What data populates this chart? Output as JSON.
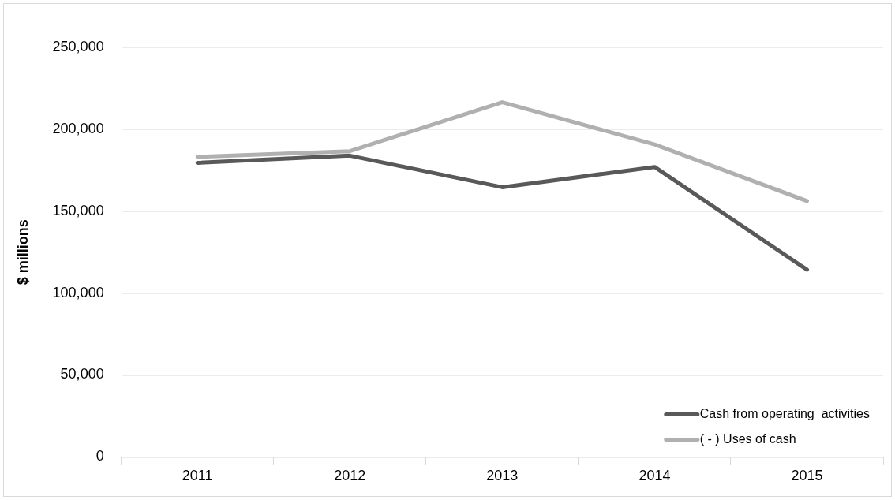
{
  "chart_data": {
    "type": "line",
    "ylabel": "$ millions",
    "categories": [
      "2011",
      "2012",
      "2013",
      "2014",
      "2015"
    ],
    "series": [
      {
        "name": "Cash from operating  activities",
        "color": "#595959",
        "values": [
          179500,
          183900,
          164600,
          177000,
          114300
        ]
      },
      {
        "name": "( - ) Uses of cash",
        "color": "#b0b0b0",
        "values": [
          183200,
          186600,
          216500,
          190700,
          156200
        ]
      }
    ],
    "ylim": [
      0,
      250000
    ],
    "yticks": [
      0,
      {
        "value": 50000,
        "label": "50,000"
      },
      {
        "value": 100000,
        "label": "100,000"
      },
      {
        "value": 150000,
        "label": "150,000"
      },
      {
        "value": 200000,
        "label": "200,000"
      },
      {
        "value": 250000,
        "label": "250,000"
      }
    ],
    "grid": "y",
    "legend": "bottom right",
    "marker": "none",
    "line_style": "solid"
  }
}
